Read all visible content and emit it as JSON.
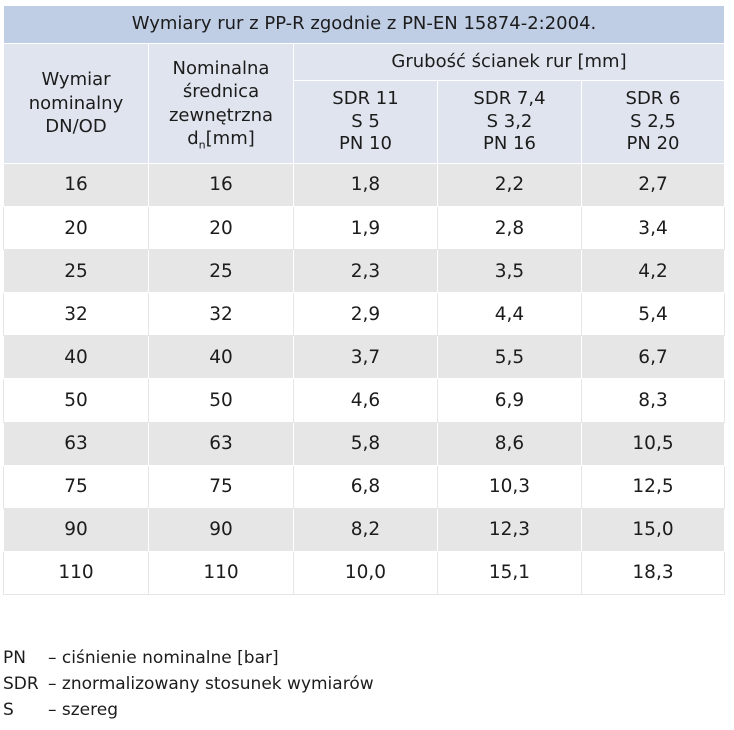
{
  "table": {
    "title": "Wymiary rur z PP-R zgodnie z PN-EN 15874-2:2004.",
    "col1_header": [
      "Wymiar",
      "nominalny",
      "DN/OD"
    ],
    "col2_header": [
      "Nominalna",
      "średnica",
      "zewnętrzna"
    ],
    "col2_header_last": {
      "pre": "d",
      "sub": "n",
      "post": "[mm]"
    },
    "group_header": "Grubość ścianek rur [mm]",
    "sdr_headers": [
      [
        "SDR 11",
        "S 5",
        "PN 10"
      ],
      [
        "SDR 7,4",
        "S 3,2",
        "PN 16"
      ],
      [
        "SDR 6",
        "S 2,5",
        "PN 20"
      ]
    ],
    "rows": [
      [
        "16",
        "16",
        "1,8",
        "2,2",
        "2,7"
      ],
      [
        "20",
        "20",
        "1,9",
        "2,8",
        "3,4"
      ],
      [
        "25",
        "25",
        "2,3",
        "3,5",
        "4,2"
      ],
      [
        "32",
        "32",
        "2,9",
        "4,4",
        "5,4"
      ],
      [
        "40",
        "40",
        "3,7",
        "5,5",
        "6,7"
      ],
      [
        "50",
        "50",
        "4,6",
        "6,9",
        "8,3"
      ],
      [
        "63",
        "63",
        "5,8",
        "8,6",
        "10,5"
      ],
      [
        "75",
        "75",
        "6,8",
        "10,3",
        "12,5"
      ],
      [
        "90",
        "90",
        "8,2",
        "12,3",
        "15,0"
      ],
      [
        "110",
        "110",
        "10,0",
        "15,1",
        "18,3"
      ]
    ]
  },
  "legend": [
    {
      "key": "PN",
      "desc": "– ciśnienie nominalne [bar]"
    },
    {
      "key": "SDR",
      "desc": "– znormalizowany stosunek wymiarów"
    },
    {
      "key": "S",
      "desc": "– szereg"
    }
  ]
}
